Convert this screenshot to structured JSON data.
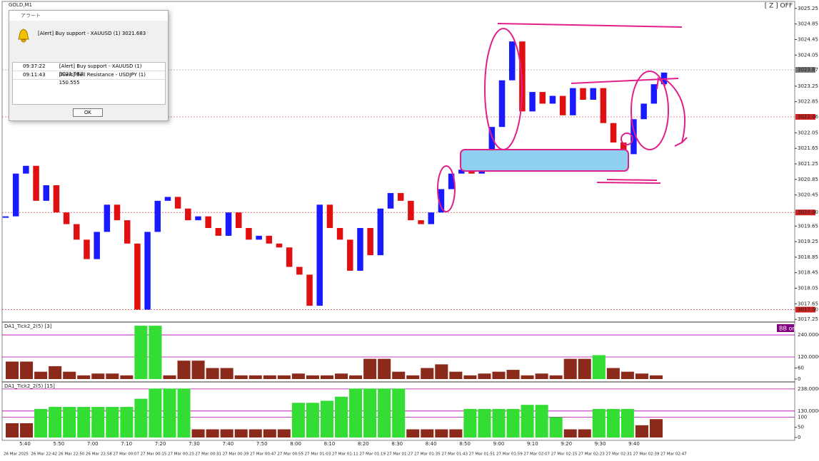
{
  "window": {
    "symbol": "GOLD,M1",
    "zoom_status": "[ Z ] OFF"
  },
  "alert_dialog": {
    "title": "アラート",
    "message": "[Alert] Buy support - XAUUSD (1) 3021.683",
    "rows": [
      [
        "09:37:22",
        "[Alert] Buy support - XAUUSD (1) 3021.683"
      ],
      [
        "09:11:43",
        "[Alert] Sell Resistance - USDJPY (1) 150.555"
      ]
    ],
    "button": "OK"
  },
  "chart_data": [
    {
      "type": "candlestick",
      "title": "GOLD,M1",
      "up_color": "#1a1aff",
      "down_color": "#e01010",
      "closes": [
        3019.9,
        3021.0,
        3021.2,
        3020.3,
        3020.7,
        3020.0,
        3019.7,
        3019.3,
        3018.8,
        3019.5,
        3020.2,
        3019.8,
        3019.2,
        3017.5,
        3019.5,
        3020.3,
        3020.4,
        3020.1,
        3019.8,
        3019.9,
        3019.6,
        3019.4,
        3020.0,
        3019.6,
        3019.3,
        3019.4,
        3019.2,
        3019.1,
        3018.6,
        3018.4,
        3017.6,
        3020.2,
        3019.6,
        3019.3,
        3018.5,
        3019.6,
        3018.9,
        3020.1,
        3020.5,
        3020.3,
        3019.8,
        3019.7,
        3020.0,
        3020.6,
        3021.0,
        3021.1,
        3021.0,
        3021.3,
        3022.2,
        3023.4,
        3024.4,
        3022.6,
        3023.1,
        3022.8,
        3023.0,
        3022.5,
        3023.2,
        3022.9,
        3023.2,
        3022.3,
        3021.8,
        3021.5,
        3022.4,
        3022.8,
        3023.3,
        3023.6
      ],
      "ylim": [
        3017.18,
        3025.43
      ],
      "yticks": [
        3025.25,
        3024.85,
        3024.45,
        3024.05,
        3023.25,
        3022.85,
        3022.05,
        3021.65,
        3021.25,
        3020.85,
        3020.45,
        3019.65,
        3019.25,
        3018.85,
        3018.45,
        3018.05,
        3017.65,
        3017.25
      ],
      "price_markers": [
        {
          "value": 3023.67,
          "label": "3023.67",
          "color": "#777777"
        },
        {
          "value": 3022.46,
          "label": "3022.46",
          "color": "#cc2222"
        },
        {
          "value": 3020,
          "label": "3020.00",
          "color": "#cc2222"
        },
        {
          "value": 3017.5,
          "label": "3017.50",
          "color": "#cc2222"
        }
      ],
      "time_labels": [
        "5:40",
        "5:50",
        "7:00",
        "7:10",
        "7:20",
        "7:30",
        "7:40",
        "7:50",
        "8:00",
        "8:10",
        "8:20",
        "8:30",
        "8:40",
        "8:50",
        "9:00",
        "9:10",
        "9:20",
        "9:30",
        "9:40"
      ],
      "date_labels": [
        "26 Mar 2025",
        "26 Mar 22:42",
        "26 Mar 22:50",
        "26 Mar 22:58",
        "27 Mar 00:07",
        "27 Mar 00:15",
        "27 Mar 00:23",
        "27 Mar 00:31",
        "27 Mar 00:39",
        "27 Mar 00:47",
        "27 Mar 00:55",
        "27 Mar 01:03",
        "27 Mar 01:11",
        "27 Mar 01:19",
        "27 Mar 01:27",
        "27 Mar 01:35",
        "27 Mar 01:43",
        "27 Mar 01:51",
        "27 Mar 01:59",
        "27 Mar 02:07",
        "27 Mar 02:15",
        "27 Mar 02:23",
        "27 Mar 02:31",
        "27 Mar 02:39",
        "27 Mar 02:47"
      ]
    },
    {
      "type": "bar",
      "title": "DA1_Tick2_2(5) [3]",
      "badge": "BB on",
      "high_color": "#33dd33",
      "low_color": "#8b2a1a",
      "values": [
        95,
        95,
        40,
        70,
        40,
        20,
        30,
        30,
        20,
        290,
        290,
        20,
        100,
        100,
        60,
        60,
        20,
        20,
        20,
        20,
        30,
        20,
        20,
        30,
        20,
        110,
        110,
        40,
        20,
        60,
        80,
        40,
        20,
        30,
        40,
        50,
        20,
        30,
        20,
        110,
        110,
        130,
        60,
        40,
        30,
        20
      ],
      "ylim": [
        0,
        306
      ],
      "yticks": [
        0,
        60,
        {
          "value": 120,
          "label": "120.0000"
        },
        {
          "value": 240,
          "label": "240.0000"
        }
      ]
    },
    {
      "type": "bar",
      "title": "DA1_Tick2_2(5) [15]",
      "high_color": "#33dd33",
      "low_color": "#8b2a1a",
      "values": [
        70,
        70,
        140,
        150,
        150,
        150,
        150,
        150,
        150,
        190,
        240,
        240,
        240,
        40,
        40,
        40,
        40,
        40,
        40,
        40,
        170,
        170,
        180,
        200,
        240,
        240,
        240,
        240,
        40,
        40,
        40,
        40,
        140,
        140,
        140,
        140,
        160,
        160,
        100,
        40,
        40,
        140,
        140,
        140,
        60,
        90
      ],
      "ylim": [
        0,
        269
      ],
      "yticks": [
        0,
        50,
        100,
        {
          "value": 130,
          "label": "130.0000"
        },
        {
          "value": 238,
          "label": "238.0000"
        }
      ]
    }
  ]
}
